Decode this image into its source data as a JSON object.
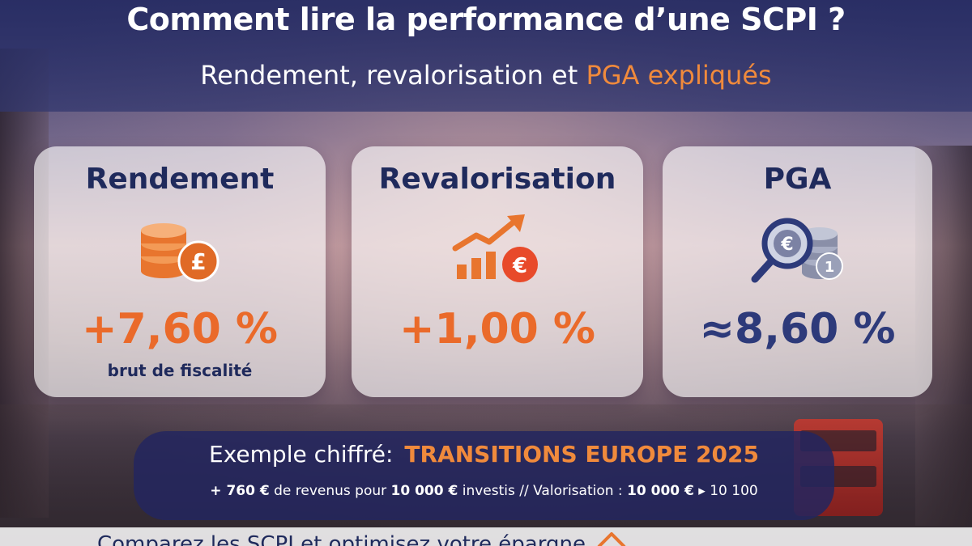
{
  "header": {
    "title": "Comment lire la performance d’une SCPI ?",
    "subtitle_prefix": "Rendement, revalorisation et ",
    "subtitle_accent": "PGA expliqués"
  },
  "cards": [
    {
      "title": "Rendement",
      "value": "+7,60 %",
      "note": "brut de fiscalité",
      "icon": "coins-pound-icon"
    },
    {
      "title": "Revalorisation",
      "value": "+1,00 %",
      "icon": "growth-chart-euro-icon"
    },
    {
      "title": "PGA",
      "value": "≈8,60 %",
      "icon": "magnifier-euro-icon"
    }
  ],
  "example": {
    "label": "Exemple chiffré:",
    "name": "TRANSITIONS EUROPE 2025",
    "line2": {
      "a": "+ 760 €",
      "b": " de revenus pour ",
      "c": "10 000 €",
      "d": " investis // Valorisation : ",
      "e": "10 000 €",
      "f": " ▸ 10 100"
    }
  },
  "bottom": {
    "text": "Comparez les SCPI et optimisez votre épargne"
  },
  "colors": {
    "navy": "#1f2a5c",
    "orange": "#ea6a2a",
    "accent": "#f08a3c"
  }
}
